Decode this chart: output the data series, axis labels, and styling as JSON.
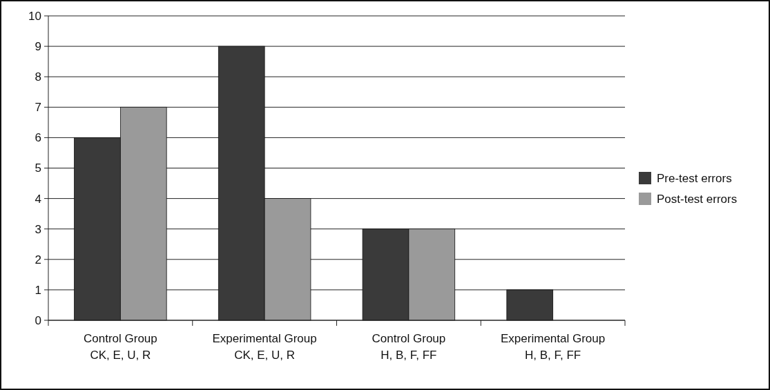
{
  "chart_data": {
    "type": "bar",
    "categories": [
      "Control Group\nCK, E, U, R",
      "Experimental Group\nCK, E, U, R",
      "Control Group\nH, B, F, FF",
      "Experimental Group\nH, B, F, FF"
    ],
    "series": [
      {
        "name": "Pre-test errors",
        "color": "#3a3a3a",
        "values": [
          6,
          9,
          3,
          1
        ]
      },
      {
        "name": "Post-test errors",
        "color": "#9a9a9a",
        "values": [
          7,
          4,
          3,
          0
        ]
      }
    ],
    "ylim": [
      0,
      10
    ],
    "yticks": [
      0,
      1,
      2,
      3,
      4,
      5,
      6,
      7,
      8,
      9,
      10
    ],
    "grid": "y",
    "legend": "right"
  }
}
